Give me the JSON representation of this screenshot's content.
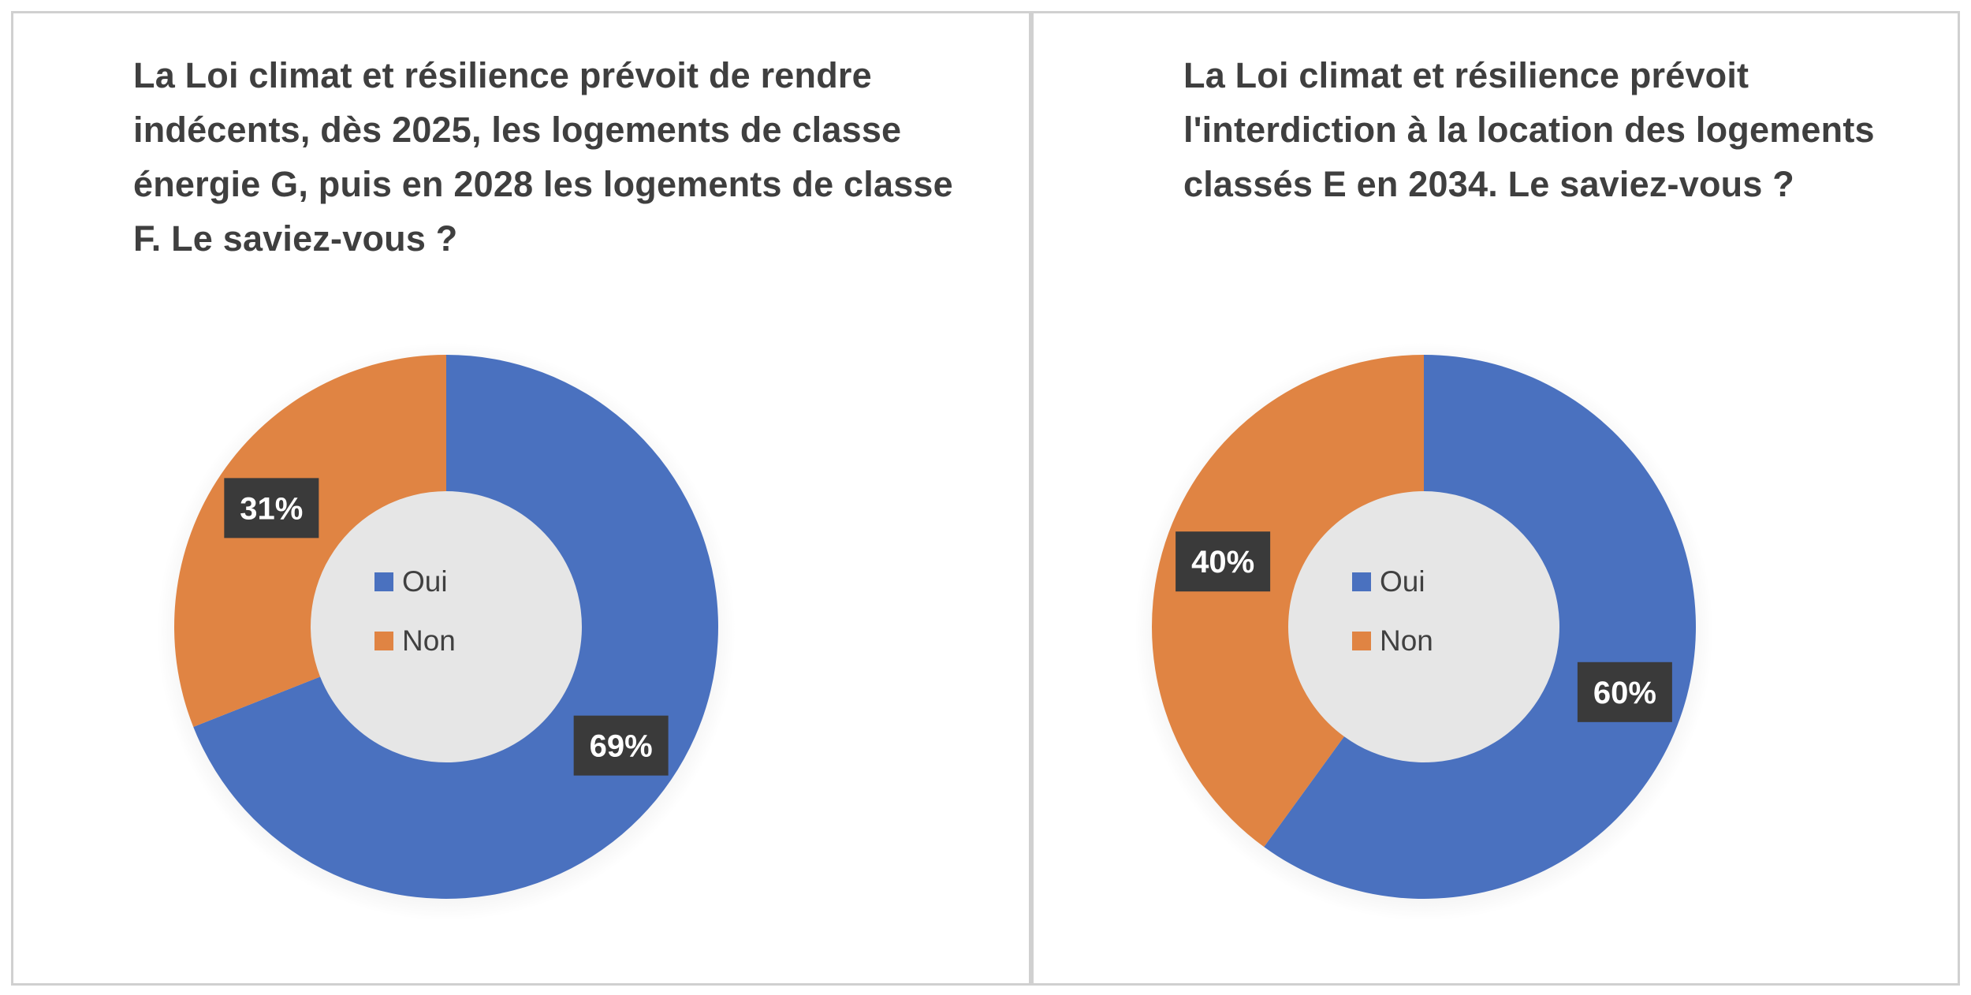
{
  "chart_data": [
    {
      "type": "pie",
      "variant": "doughnut",
      "title": "La Loi climat et résilience prévoit de rendre indécents, dès 2025, les logements de classe énergie G, puis en 2028 les logements de classe F. Le saviez-vous ?",
      "categories": [
        "Oui",
        "Non"
      ],
      "values": [
        69,
        31
      ],
      "labels": [
        "69%",
        "31%"
      ],
      "colors": [
        "#4a71bf",
        "#e08443"
      ],
      "legend_position": "center"
    },
    {
      "type": "pie",
      "variant": "doughnut",
      "title": "La Loi climat et résilience prévoit l'interdiction à la location des logements classés E en 2034. Le saviez-vous ?",
      "categories": [
        "Oui",
        "Non"
      ],
      "values": [
        60,
        40
      ],
      "labels": [
        "60%",
        "40%"
      ],
      "colors": [
        "#4a71bf",
        "#e08443"
      ],
      "legend_position": "center"
    }
  ]
}
